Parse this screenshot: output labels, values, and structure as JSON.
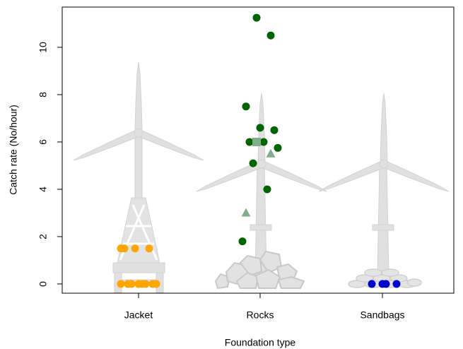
{
  "chart_data": {
    "type": "strip",
    "xlabel": "Foundation type",
    "ylabel": "Catch rate (No/hour)",
    "categories": [
      "Jacket",
      "Rocks",
      "Sandbags"
    ],
    "ylim": [
      -0.39,
      11.7
    ],
    "yticks": [
      0,
      2,
      4,
      6,
      8,
      10
    ],
    "series": [
      {
        "color": "#FFA500",
        "marker": "circle",
        "values": [
          [
            1.5,
            1.5,
            1.5,
            1.5,
            0,
            0,
            0,
            0,
            0,
            0,
            0,
            0
          ],
          [],
          []
        ]
      },
      {
        "color": "#006400",
        "marker": "circle",
        "values": [
          [],
          [
            11.25,
            10.5,
            7.5,
            6.6,
            6.5,
            6.0,
            6.0,
            5.75,
            5.1,
            4.0,
            1.8
          ],
          []
        ]
      },
      {
        "color": "#7fae8a",
        "marker": "square",
        "values": [
          [],
          [
            6.0
          ],
          []
        ]
      },
      {
        "color": "#7fae8a",
        "marker": "triangle",
        "values": [
          [],
          [
            5.5,
            3.0
          ],
          []
        ]
      },
      {
        "color": "#0000CD",
        "marker": "circle",
        "values": [
          [],
          [],
          [
            0,
            0,
            0,
            0
          ]
        ]
      }
    ]
  }
}
